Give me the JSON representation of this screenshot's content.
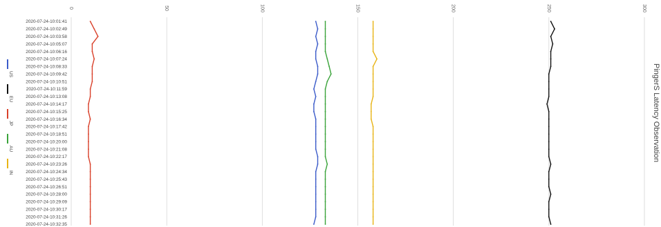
{
  "chart_data": {
    "type": "line",
    "orientation": "rotated-90",
    "title": "PingerS Latency Observation",
    "xlabel": "",
    "ylabel": "",
    "ylim": [
      0,
      300
    ],
    "value_ticks": [
      "0",
      "50",
      "100",
      "150",
      "200",
      "250",
      "300"
    ],
    "grid": true,
    "legend_position": "left",
    "time_labels": [
      "2020-07-24-10:01:41",
      "2020-07-24-10:02:49",
      "2020-07-24-10:03:58",
      "2020-07-24-10:05:07",
      "2020-07-24-10:06:16",
      "2020-07-24-10:07:24",
      "2020-07-24-10:08:33",
      "2020-07-24-10:09:42",
      "2020-07-24-10:10:51",
      "2020-07-24-10:11:59",
      "2020-07-24-10:13:08",
      "2020-07-24-10:14:17",
      "2020-07-24-10:15:25",
      "2020-07-24-10:16:34",
      "2020-07-24-10:17:42",
      "2020-07-24-10:18:51",
      "2020-07-24-10:20:00",
      "2020-07-24-10:21:08",
      "2020-07-24-10:22:17",
      "2020-07-24-10:23:26",
      "2020-07-24-10:24:34",
      "2020-07-24-10:25:43",
      "2020-07-24-10:26:51",
      "2020-07-24-10:28:00",
      "2020-07-24-10:29:09",
      "2020-07-24-10:30:17",
      "2020-07-24-10:31:26",
      "2020-07-24-10:32:35"
    ],
    "series": [
      {
        "name": "US",
        "color": "#3b5bc9",
        "values": [
          128,
          129,
          128,
          129,
          128,
          128,
          129,
          129,
          128,
          127,
          128,
          127,
          127,
          128,
          128,
          128,
          128,
          128,
          129,
          129,
          128,
          128,
          128,
          128,
          128,
          128,
          128,
          127
        ]
      },
      {
        "name": "EU",
        "color": "#111111",
        "values": [
          251,
          253,
          251,
          252,
          251,
          251,
          251,
          250,
          250,
          250,
          250,
          249,
          250,
          250,
          250,
          250,
          250,
          250,
          250,
          251,
          250,
          250,
          250,
          251,
          250,
          250,
          250,
          251
        ]
      },
      {
        "name": "JP",
        "color": "#d9412b",
        "values": [
          10,
          12,
          14,
          11,
          11,
          12,
          11,
          11,
          11,
          10,
          10,
          9,
          9,
          10,
          9,
          9,
          9,
          9,
          9,
          10,
          10,
          10,
          10,
          10,
          10,
          10,
          10,
          10
        ]
      },
      {
        "name": "AU",
        "color": "#3aa33a",
        "values": [
          133,
          133,
          133,
          133,
          133,
          134,
          135,
          136,
          134,
          133,
          133,
          133,
          133,
          133,
          133,
          133,
          133,
          133,
          133,
          134,
          133,
          133,
          133,
          133,
          133,
          133,
          133,
          133
        ]
      },
      {
        "name": "IN",
        "color": "#e8b416",
        "values": [
          158,
          158,
          158,
          158,
          158,
          160,
          158,
          158,
          158,
          158,
          158,
          157,
          157,
          157,
          158,
          158,
          158,
          158,
          158,
          158,
          158,
          158,
          158,
          158,
          158,
          158,
          158,
          158
        ]
      }
    ]
  }
}
